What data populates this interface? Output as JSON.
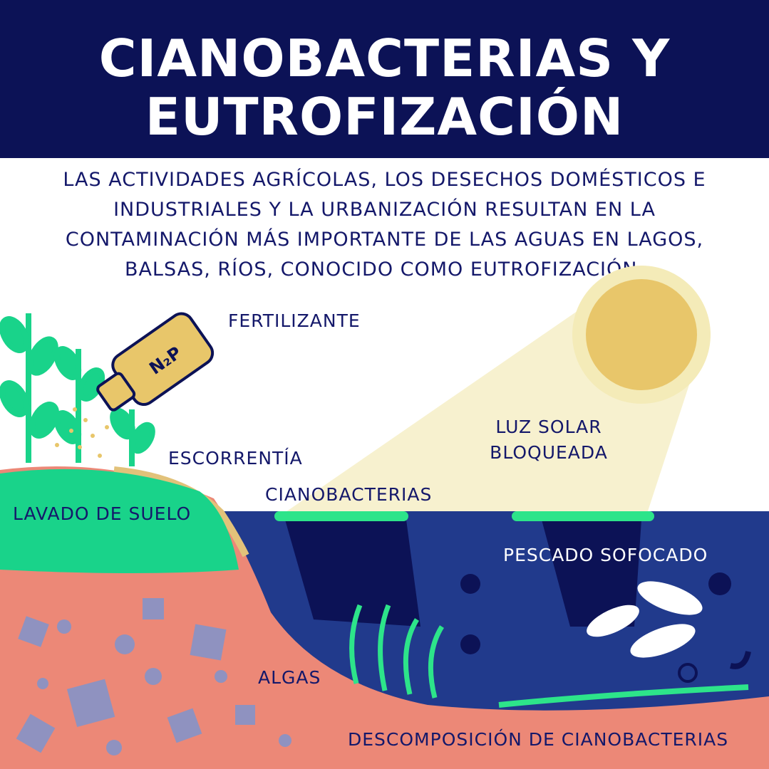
{
  "title": {
    "line1": "CIANOBACTERIAS Y",
    "line2": "EUTROFIZACIÓN"
  },
  "intro": "LAS ACTIVIDADES AGRÍCOLAS, LOS DESECHOS DOMÉSTICOS E INDUSTRIALES Y LA URBANIZACIÓN RESULTAN EN LA CONTAMINACIÓN MÁS IMPORTANTE DE LAS AGUAS EN LAGOS, BALSAS, RÍOS, CONOCIDO COMO EUTROFIZACIÓN.",
  "labels": {
    "fertilizante": "FERTILIZANTE",
    "escorrentia": "ESCORRENTÍA",
    "lavado": "LAVADO DE SUELO",
    "cianobacterias": "CIANOBACTERIAS",
    "luz1": "LUZ SOLAR",
    "luz2": "BLOQUEADA",
    "pescado": "PESCADO SOFOCADO",
    "algas": "ALGAS",
    "descomposicion": "DESCOMPOSICIÓN DE CIANOBACTERIAS"
  },
  "bottle_label": "N₂P",
  "colors": {
    "navy": "#0c1256",
    "water": "#213a8c",
    "soil": "#ec8877",
    "grass": "#19d38a",
    "algae": "#2de48a",
    "sun": "#e8c66a",
    "beam": "#f7f1cf",
    "pebbles": "#8f92c0",
    "text": "#14186a"
  }
}
